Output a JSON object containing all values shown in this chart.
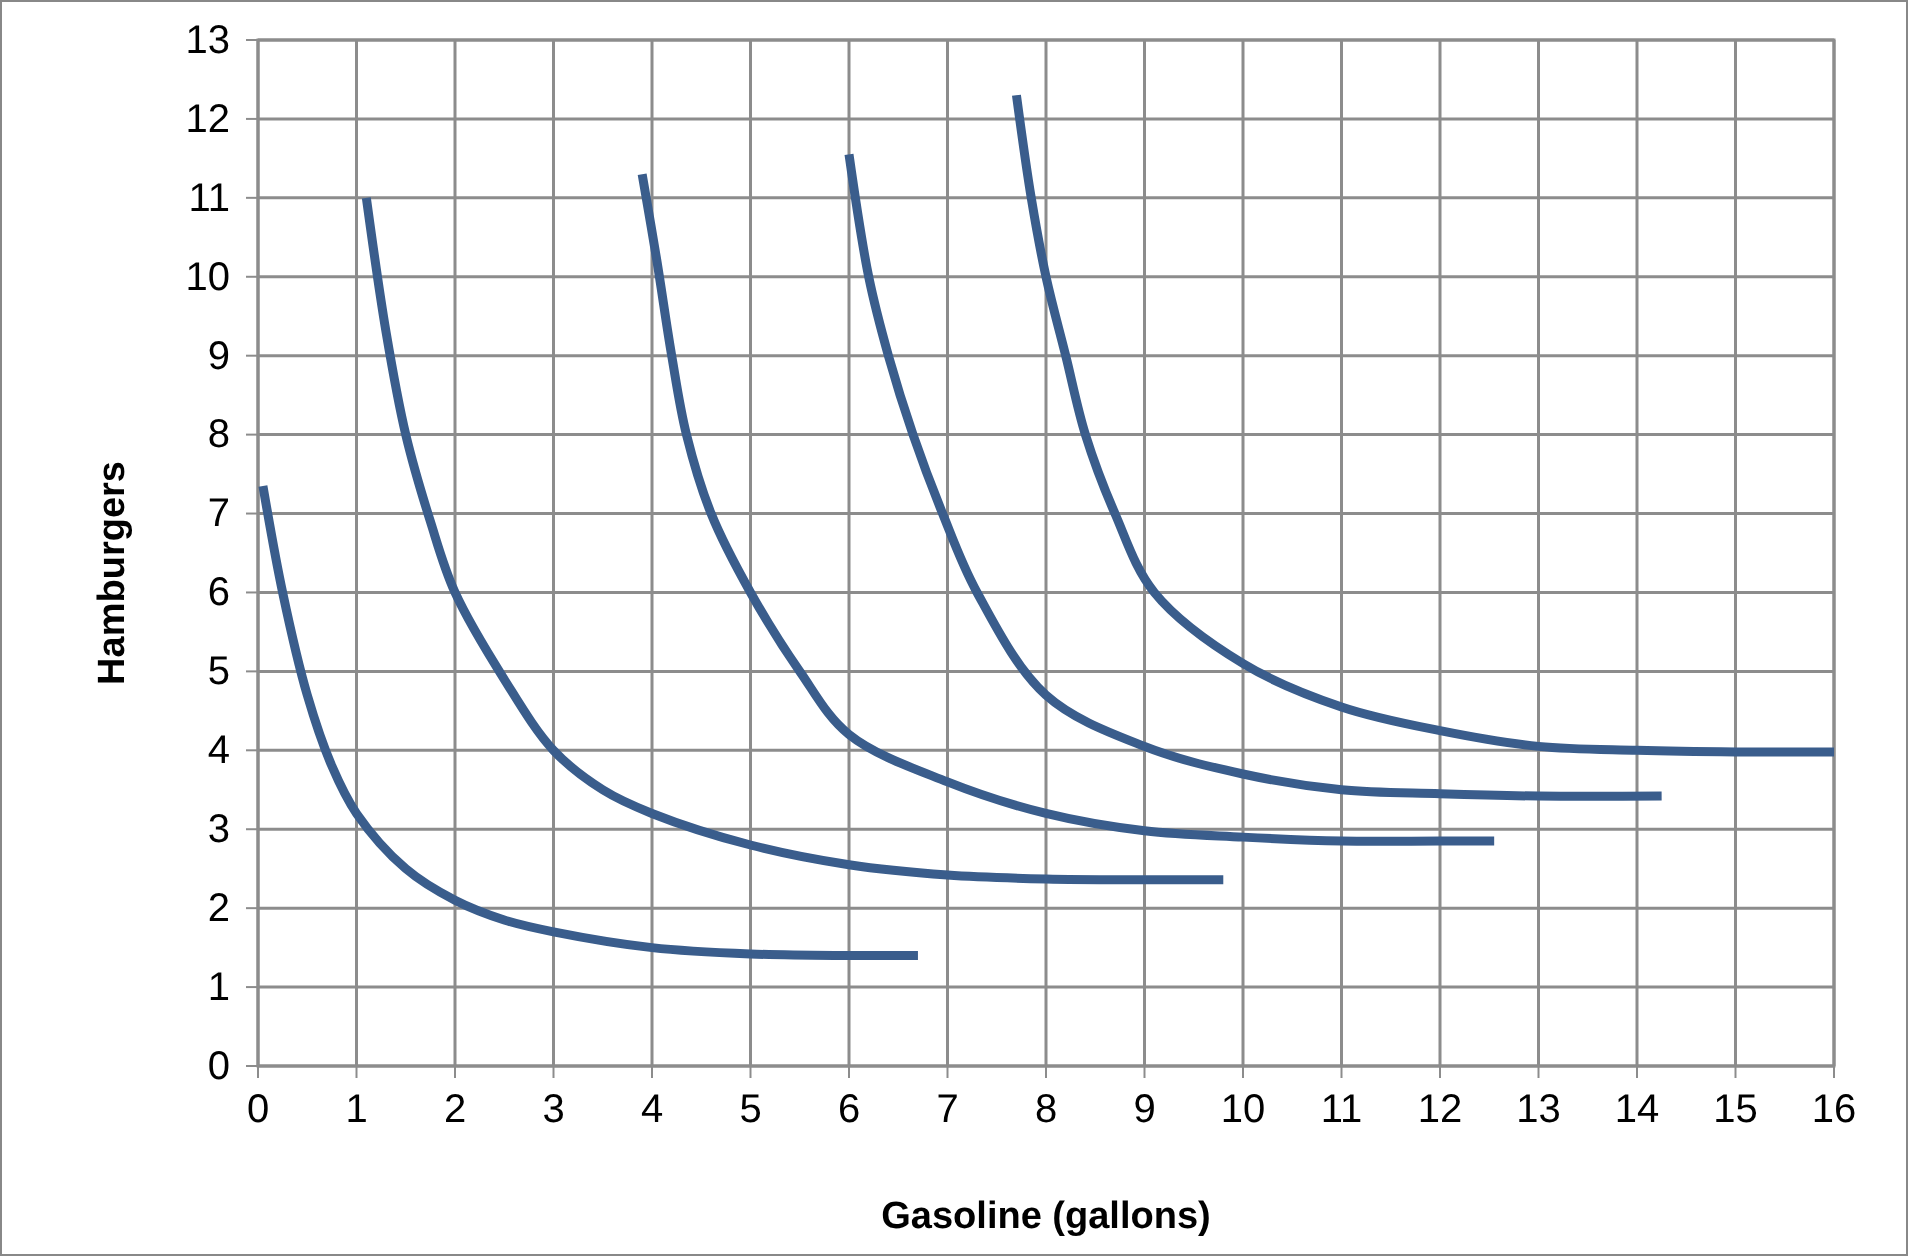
{
  "chart_data": {
    "type": "line",
    "xlabel": "Gasoline (gallons)",
    "ylabel": "Hamburgers",
    "xlim": [
      0,
      16
    ],
    "xticks": [
      0,
      1,
      2,
      3,
      4,
      5,
      6,
      7,
      8,
      9,
      10,
      11,
      12,
      13,
      14,
      15,
      16
    ],
    "ylim": [
      0,
      13
    ],
    "yticks": [
      0,
      1,
      2,
      3,
      4,
      5,
      6,
      7,
      8,
      9,
      10,
      11,
      12,
      13
    ],
    "grid": true,
    "marker": "none",
    "line_style": "solid",
    "series": [
      {
        "color": "#3a5d8c",
        "x": [
          0.05,
          0.25,
          0.5,
          0.75,
          1,
          1.5,
          2,
          2.5,
          3,
          4,
          5,
          6,
          6.7
        ],
        "values": [
          7.35,
          6.0,
          4.7,
          3.8,
          3.2,
          2.5,
          2.1,
          1.85,
          1.7,
          1.5,
          1.42,
          1.4,
          1.4
        ]
      },
      {
        "color": "#3a5d8c",
        "x": [
          1.1,
          1.3,
          1.5,
          1.75,
          2,
          2.5,
          3,
          3.5,
          4,
          5,
          6,
          7,
          8,
          9,
          9.8
        ],
        "values": [
          11.0,
          9.3,
          8.0,
          6.9,
          6.0,
          4.9,
          4.0,
          3.5,
          3.2,
          2.8,
          2.55,
          2.42,
          2.37,
          2.36,
          2.36
        ]
      },
      {
        "color": "#3a5d8c",
        "x": [
          3.9,
          4.05,
          4.2,
          4.35,
          4.6,
          5.0,
          5.5,
          6,
          7,
          8,
          9,
          10,
          11,
          12,
          12.55
        ],
        "values": [
          11.3,
          10.2,
          9,
          8,
          7,
          6,
          5,
          4.2,
          3.6,
          3.2,
          2.98,
          2.9,
          2.85,
          2.85,
          2.85
        ]
      },
      {
        "color": "#3a5d8c",
        "x": [
          6,
          6.2,
          6.4,
          6.65,
          6.95,
          7.3,
          8,
          9,
          10,
          11,
          12,
          13,
          14.25
        ],
        "values": [
          11.55,
          10,
          9,
          8,
          7,
          6,
          4.7,
          4.05,
          3.7,
          3.5,
          3.45,
          3.42,
          3.42
        ]
      },
      {
        "color": "#3a5d8c",
        "x": [
          7.7,
          7.85,
          8.0,
          8.2,
          8.4,
          8.7,
          9.1,
          10,
          11,
          12,
          13,
          14,
          15,
          16
        ],
        "values": [
          12.3,
          11,
          10,
          9,
          8,
          7,
          6,
          5.1,
          4.55,
          4.25,
          4.05,
          4.0,
          3.98,
          3.98
        ]
      }
    ]
  }
}
